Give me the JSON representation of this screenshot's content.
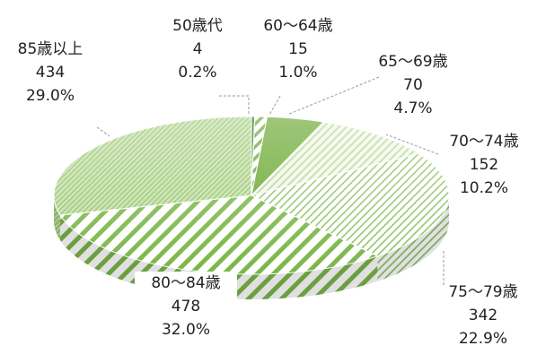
{
  "chart_data": {
    "type": "pie",
    "title": "",
    "slices": [
      {
        "label": "50歳代",
        "value": 4,
        "percent": "0.2%",
        "value_text": "4",
        "style": "solid-dark"
      },
      {
        "label": "60～64歳",
        "value": 15,
        "percent": "1.0%",
        "value_text": "15",
        "style": "white-stripe"
      },
      {
        "label": "65～69歳",
        "value": 70,
        "percent": "4.7%",
        "value_text": "70",
        "style": "solid-green"
      },
      {
        "label": "70～74歳",
        "value": 152,
        "percent": "10.2%",
        "value_text": "152",
        "style": "light-stripe"
      },
      {
        "label": "75～79歳",
        "value": 342,
        "percent": "22.9%",
        "value_text": "342",
        "style": "fine-stripe"
      },
      {
        "label": "80～84歳",
        "value": 478,
        "percent": "32.0%",
        "value_text": "478",
        "style": "wide-stripe"
      },
      {
        "label": "85歳以上",
        "value": 434,
        "percent": "29.0%",
        "value_text": "434",
        "style": "dense-stripe"
      }
    ],
    "colors": {
      "dark": "#2f7a1f",
      "green": "#6aa832",
      "stripe": "#7ab648",
      "light": "#cfe5b5"
    }
  }
}
